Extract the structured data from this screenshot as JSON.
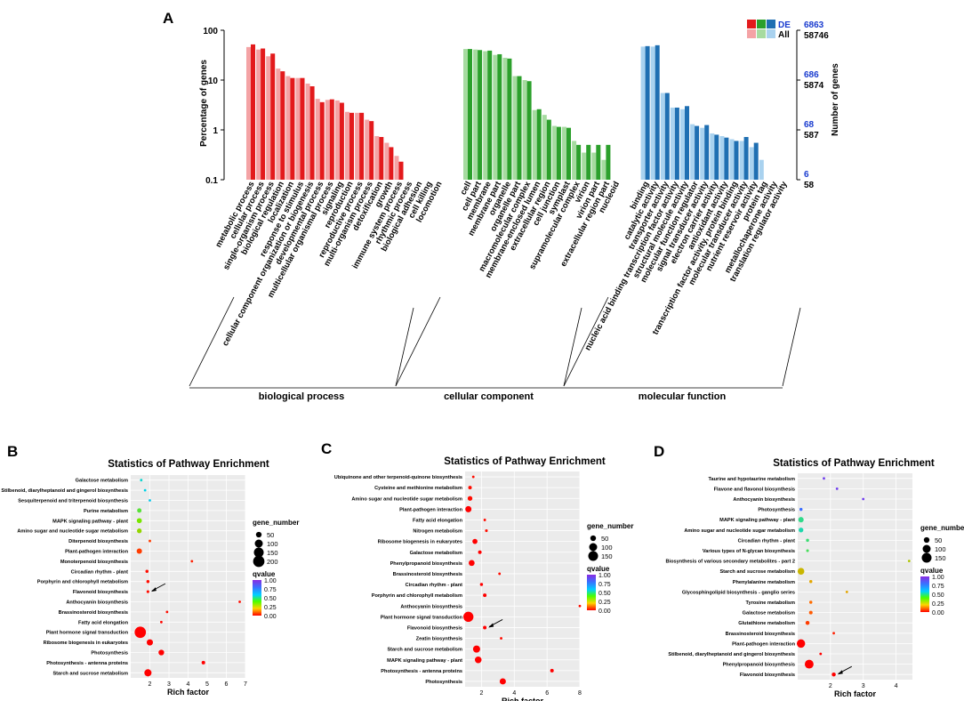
{
  "colors": {
    "bp_de": "#e31a1c",
    "bp_all": "#f4a3a5",
    "cc_de": "#2ca02c",
    "cc_all": "#a6dba0",
    "mf_de": "#1f6fb2",
    "mf_all": "#a9d2ef",
    "num_de": "#1a3ccf",
    "num_all": "#000000"
  },
  "panel_a": {
    "label": "A",
    "ylabel_left": "Percentage of genes",
    "ylabel_right": "Number of genes",
    "legend": {
      "de": "DE",
      "all": "All"
    },
    "yticks_left": [
      "100",
      "10",
      "1",
      "0.1"
    ],
    "yticks_right_de": [
      "6863",
      "686",
      "68",
      "6"
    ],
    "yticks_right_all": [
      "58746",
      "5874",
      "587",
      "58"
    ],
    "chart_data": {
      "type": "bar",
      "scale": "log",
      "ylim": [
        0.1,
        100
      ],
      "series_names": [
        "All",
        "DE"
      ],
      "groups": [
        {
          "name": "biological process",
          "categories": [
            {
              "label": "metabolic process",
              "all": 46,
              "de": 52
            },
            {
              "label": "cellular process",
              "all": 41,
              "de": 43
            },
            {
              "label": "single-organism process",
              "all": 30,
              "de": 34
            },
            {
              "label": "biological regulation",
              "all": 17,
              "de": 15
            },
            {
              "label": "localization",
              "all": 12,
              "de": 11
            },
            {
              "label": "response to stimulus",
              "all": 11,
              "de": 11
            },
            {
              "label": "cellular component organization or biogenesis",
              "all": 8.5,
              "de": 7.5
            },
            {
              "label": "developmental process",
              "all": 4.2,
              "de": 3.6
            },
            {
              "label": "multicellular organismal process",
              "all": 4.0,
              "de": 4.1
            },
            {
              "label": "signaling",
              "all": 3.9,
              "de": 3.5
            },
            {
              "label": "reproduction",
              "all": 2.3,
              "de": 2.2
            },
            {
              "label": "reproductive process",
              "all": 2.2,
              "de": 2.2
            },
            {
              "label": "multi-organism process",
              "all": 1.6,
              "de": 1.5
            },
            {
              "label": "detoxification",
              "all": 0.75,
              "de": 0.72
            },
            {
              "label": "growth",
              "all": 0.55,
              "de": 0.45
            },
            {
              "label": "immune system process",
              "all": 0.3,
              "de": 0.23
            },
            {
              "label": "rhythmic process",
              "all": 0.1,
              "de": 0.1
            },
            {
              "label": "biological adhesion",
              "all": 0.1,
              "de": 0.1
            },
            {
              "label": "cell killing",
              "all": 0.1,
              "de": 0.1
            },
            {
              "label": "locomotion",
              "all": 0.1,
              "de": 0.1
            }
          ]
        },
        {
          "name": "cellular component",
          "categories": [
            {
              "label": "cell",
              "all": 42,
              "de": 42
            },
            {
              "label": "cell part",
              "all": 41,
              "de": 40
            },
            {
              "label": "membrane",
              "all": 38,
              "de": 39
            },
            {
              "label": "membrane part",
              "all": 32,
              "de": 33
            },
            {
              "label": "organelle",
              "all": 28,
              "de": 27
            },
            {
              "label": "organelle part",
              "all": 12,
              "de": 12
            },
            {
              "label": "macromolecular complex",
              "all": 10,
              "de": 9.5
            },
            {
              "label": "membrane-enclosed lumen",
              "all": 2.5,
              "de": 2.6
            },
            {
              "label": "extracellular region",
              "all": 2.0,
              "de": 1.6
            },
            {
              "label": "cell junction",
              "all": 1.2,
              "de": 1.15
            },
            {
              "label": "symplast",
              "all": 1.15,
              "de": 1.1
            },
            {
              "label": "supramolecular complex",
              "all": 0.6,
              "de": 0.5
            },
            {
              "label": "virion",
              "all": 0.35,
              "de": 0.5
            },
            {
              "label": "virion part",
              "all": 0.35,
              "de": 0.5
            },
            {
              "label": "extracellular region part",
              "all": 0.25,
              "de": 0.5
            },
            {
              "label": "nucleoid",
              "all": 0.1,
              "de": 0.1
            }
          ]
        },
        {
          "name": "molecular function",
          "categories": [
            {
              "label": "binding",
              "all": 47,
              "de": 48
            },
            {
              "label": "catalytic activity",
              "all": 47,
              "de": 50
            },
            {
              "label": "transporter activity",
              "all": 5.5,
              "de": 5.5
            },
            {
              "label": "nucleic acid binding transcription factor activity",
              "all": 2.8,
              "de": 2.8
            },
            {
              "label": "structural molecule activity",
              "all": 2.6,
              "de": 3.0
            },
            {
              "label": "molecular function regulator",
              "all": 1.3,
              "de": 1.2
            },
            {
              "label": "signal transducer activity",
              "all": 1.1,
              "de": 1.25
            },
            {
              "label": "electron carrier activity",
              "all": 0.85,
              "de": 0.8
            },
            {
              "label": "antioxidant activity",
              "all": 0.75,
              "de": 0.7
            },
            {
              "label": "transcription factor activity, protein binding",
              "all": 0.65,
              "de": 0.6
            },
            {
              "label": "molecular transducer activity",
              "all": 0.6,
              "de": 0.72
            },
            {
              "label": "nutrient reservoir activity",
              "all": 0.45,
              "de": 0.55
            },
            {
              "label": "protein tag",
              "all": 0.25,
              "de": 0.1
            },
            {
              "label": "metallochaperone activity",
              "all": 0.1,
              "de": 0.1
            },
            {
              "label": "translation regulator activity",
              "all": 0.1,
              "de": 0.1
            }
          ]
        }
      ]
    }
  },
  "scatter_panels": [
    {
      "label": "B",
      "title": "Statistics of Pathway Enrichment",
      "xlabel": "Rich factor",
      "xlim": [
        1,
        7
      ],
      "xticks": [
        2,
        3,
        4,
        5,
        6,
        7
      ],
      "size_legend": {
        "title": "gene_number",
        "values": [
          "50",
          "100",
          "150",
          "200"
        ]
      },
      "color_legend": {
        "title": "qvalue",
        "ticks": [
          "1.00",
          "0.75",
          "0.50",
          "0.25",
          "0.00"
        ]
      },
      "arrow_target": "Flavonoid biosynthesis",
      "chart_data": {
        "type": "scatter",
        "points": [
          {
            "pathway": "Galactose metabolism",
            "rich": 1.55,
            "genes": 8,
            "q": 0.68
          },
          {
            "pathway": "Stilbenoid, diarylheptanoid and gingerol biosynthesis",
            "rich": 1.75,
            "genes": 6,
            "q": 0.7
          },
          {
            "pathway": "Sesquiterpenoid and triterpenoid biosynthesis",
            "rich": 2.0,
            "genes": 3,
            "q": 0.72
          },
          {
            "pathway": "Purine metabolism",
            "rich": 1.45,
            "genes": 30,
            "q": 0.55
          },
          {
            "pathway": "MAPK signaling pathway - plant",
            "rich": 1.45,
            "genes": 40,
            "q": 0.5
          },
          {
            "pathway": "Amino sugar and nucleotide sugar metabolism",
            "rich": 1.45,
            "genes": 35,
            "q": 0.45
          },
          {
            "pathway": "Diterpenoid biosynthesis",
            "rich": 2.0,
            "genes": 10,
            "q": 0.1
          },
          {
            "pathway": "Plant-pathogen interaction",
            "rich": 1.45,
            "genes": 45,
            "q": 0.1
          },
          {
            "pathway": "Monoterpenoid biosynthesis",
            "rich": 4.2,
            "genes": 3,
            "q": 0.05
          },
          {
            "pathway": "Circadian rhythm - plant",
            "rich": 1.85,
            "genes": 15,
            "q": 0.02
          },
          {
            "pathway": "Porphyrin and chlorophyll metabolism",
            "rich": 1.9,
            "genes": 15,
            "q": 0.02
          },
          {
            "pathway": "Flavonoid biosynthesis",
            "rich": 1.9,
            "genes": 12,
            "q": 0.02
          },
          {
            "pathway": "Anthocyanin biosynthesis",
            "rich": 6.7,
            "genes": 3,
            "q": 0.02
          },
          {
            "pathway": "Brassinosteroid biosynthesis",
            "rich": 2.9,
            "genes": 6,
            "q": 0.02
          },
          {
            "pathway": "Fatty acid elongation",
            "rich": 2.6,
            "genes": 8,
            "q": 0.01
          },
          {
            "pathway": "Plant hormone signal transduction",
            "rich": 1.5,
            "genes": 200,
            "q": 0.0
          },
          {
            "pathway": "Ribosome biogenesis in eukaryotes",
            "rich": 2.0,
            "genes": 60,
            "q": 0.0
          },
          {
            "pathway": "Photosynthesis",
            "rich": 2.6,
            "genes": 50,
            "q": 0.0
          },
          {
            "pathway": "Photosynthesis - antenna proteins",
            "rich": 4.8,
            "genes": 20,
            "q": 0.0
          },
          {
            "pathway": "Starch and sucrose metabolism",
            "rich": 1.9,
            "genes": 80,
            "q": 0.0
          }
        ]
      }
    },
    {
      "label": "C",
      "title": "Statistics of Pathway Enrichment",
      "xlabel": "Rich factor",
      "xlim": [
        1,
        8
      ],
      "xticks": [
        2,
        4,
        6,
        8
      ],
      "size_legend": {
        "title": "gene_number",
        "values": [
          "50",
          "100",
          "150"
        ]
      },
      "color_legend": {
        "title": "qvalue",
        "ticks": [
          "1.00",
          "0.75",
          "0.50",
          "0.25",
          "0.00"
        ]
      },
      "arrow_target": "Flavonoid biosynthesis",
      "chart_data": {
        "type": "scatter",
        "points": [
          {
            "pathway": "Ubiquinone and other terpenoid-quinone biosynthesis",
            "rich": 1.5,
            "genes": 10,
            "q": 0.02
          },
          {
            "pathway": "Cysteine and methionine metabolism",
            "rich": 1.3,
            "genes": 20,
            "q": 0.02
          },
          {
            "pathway": "Amino sugar and nucleotide sugar metabolism",
            "rich": 1.3,
            "genes": 35,
            "q": 0.02
          },
          {
            "pathway": "Plant-pathogen interaction",
            "rich": 1.2,
            "genes": 60,
            "q": 0.0
          },
          {
            "pathway": "Fatty acid elongation",
            "rich": 2.2,
            "genes": 10,
            "q": 0.02
          },
          {
            "pathway": "Nitrogen metabolism",
            "rich": 2.3,
            "genes": 12,
            "q": 0.02
          },
          {
            "pathway": "Ribosome biogenesis in eukaryotes",
            "rich": 1.6,
            "genes": 40,
            "q": 0.0
          },
          {
            "pathway": "Galactose metabolism",
            "rich": 1.9,
            "genes": 20,
            "q": 0.0
          },
          {
            "pathway": "Phenylpropanoid biosynthesis",
            "rich": 1.4,
            "genes": 55,
            "q": 0.0
          },
          {
            "pathway": "Brassinosteroid biosynthesis",
            "rich": 3.1,
            "genes": 8,
            "q": 0.02
          },
          {
            "pathway": "Circadian rhythm - plant",
            "rich": 2.0,
            "genes": 15,
            "q": 0.0
          },
          {
            "pathway": "Porphyrin and chlorophyll metabolism",
            "rich": 2.2,
            "genes": 20,
            "q": 0.0
          },
          {
            "pathway": "Anthocyanin biosynthesis",
            "rich": 8.0,
            "genes": 3,
            "q": 0.02
          },
          {
            "pathway": "Plant hormone signal transduction",
            "rich": 1.2,
            "genes": 160,
            "q": 0.0
          },
          {
            "pathway": "Flavonoid biosynthesis",
            "rich": 2.2,
            "genes": 20,
            "q": 0.0
          },
          {
            "pathway": "Zeatin biosynthesis",
            "rich": 3.2,
            "genes": 10,
            "q": 0.02
          },
          {
            "pathway": "Starch and sucrose metabolism",
            "rich": 1.7,
            "genes": 80,
            "q": 0.0
          },
          {
            "pathway": "MAPK signaling pathway - plant",
            "rich": 1.8,
            "genes": 70,
            "q": 0.0
          },
          {
            "pathway": "Photosynthesis - antenna proteins",
            "rich": 6.3,
            "genes": 20,
            "q": 0.0
          },
          {
            "pathway": "Photosynthesis",
            "rich": 3.3,
            "genes": 60,
            "q": 0.0
          }
        ]
      }
    },
    {
      "label": "D",
      "title": "Statistics of Pathway Enrichment",
      "xlabel": "Rich factor",
      "xlim": [
        1,
        4.5
      ],
      "xticks": [
        2,
        3,
        4
      ],
      "size_legend": {
        "title": "gene_number",
        "values": [
          "50",
          "100",
          "150"
        ]
      },
      "color_legend": {
        "title": "qvalue",
        "ticks": [
          "1.00",
          "0.75",
          "0.50",
          "0.25",
          "0.00"
        ]
      },
      "arrow_target": "Flavonoid biosynthesis",
      "chart_data": {
        "type": "scatter",
        "points": [
          {
            "pathway": "Taurine and hypotaurine metabolism",
            "rich": 1.8,
            "genes": 3,
            "q": 0.95
          },
          {
            "pathway": "Flavone and flavonol biosynthesis",
            "rich": 2.2,
            "genes": 3,
            "q": 0.95
          },
          {
            "pathway": "Anthocyanin biosynthesis",
            "rich": 3.0,
            "genes": 3,
            "q": 0.95
          },
          {
            "pathway": "Photosynthesis",
            "rich": 1.1,
            "genes": 15,
            "q": 0.85
          },
          {
            "pathway": "MAPK signaling pathway - plant",
            "rich": 1.1,
            "genes": 45,
            "q": 0.62
          },
          {
            "pathway": "Amino sugar and nucleotide sugar metabolism",
            "rich": 1.1,
            "genes": 35,
            "q": 0.65
          },
          {
            "pathway": "Circadian rhythm - plant",
            "rich": 1.3,
            "genes": 15,
            "q": 0.6
          },
          {
            "pathway": "Various types of N-glycan biosynthesis",
            "rich": 1.3,
            "genes": 12,
            "q": 0.58
          },
          {
            "pathway": "Biosynthesis of various secondary metabolites - part 2",
            "rich": 4.4,
            "genes": 3,
            "q": 0.4
          },
          {
            "pathway": "Starch and sucrose metabolism",
            "rich": 1.1,
            "genes": 70,
            "q": 0.35
          },
          {
            "pathway": "Phenylalanine metabolism",
            "rich": 1.4,
            "genes": 15,
            "q": 0.3
          },
          {
            "pathway": "Glycosphingolipid biosynthesis - ganglio series",
            "rich": 2.5,
            "genes": 3,
            "q": 0.3
          },
          {
            "pathway": "Tyrosine metabolism",
            "rich": 1.4,
            "genes": 15,
            "q": 0.18
          },
          {
            "pathway": "Galactose metabolism",
            "rich": 1.4,
            "genes": 20,
            "q": 0.15
          },
          {
            "pathway": "Glutathione metabolism",
            "rich": 1.3,
            "genes": 25,
            "q": 0.1
          },
          {
            "pathway": "Brassinosteroid biosynthesis",
            "rich": 2.1,
            "genes": 5,
            "q": 0.05
          },
          {
            "pathway": "Plant-pathogen interaction",
            "rich": 1.1,
            "genes": 110,
            "q": 0.0
          },
          {
            "pathway": "Stilbenoid, diarylheptanoid and gingerol biosynthesis",
            "rich": 1.7,
            "genes": 10,
            "q": 0.0
          },
          {
            "pathway": "Phenylpropanoid biosynthesis",
            "rich": 1.35,
            "genes": 120,
            "q": 0.0
          },
          {
            "pathway": "Flavonoid biosynthesis",
            "rich": 2.1,
            "genes": 25,
            "q": 0.0
          }
        ]
      }
    }
  ]
}
